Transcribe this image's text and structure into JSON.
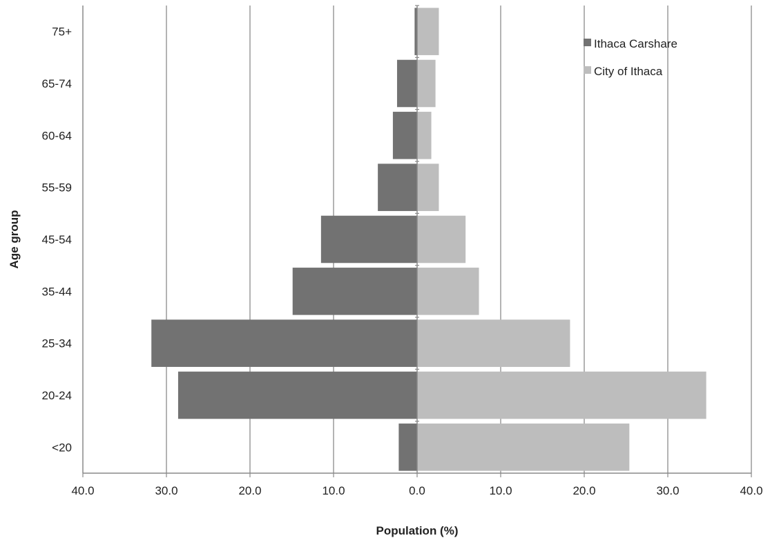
{
  "chart_data": {
    "type": "bar",
    "orientation": "horizontal",
    "layout": "population-pyramid",
    "title": "",
    "xlabel": "Population (%)",
    "ylabel": "Age group",
    "xlim": [
      -40,
      40
    ],
    "x_ticks": [
      "40.0",
      "30.0",
      "20.0",
      "10.0",
      "0.0",
      "10.0",
      "20.0",
      "30.0",
      "40.0"
    ],
    "grid": "vertical",
    "legend_position": "top-right",
    "categories": [
      "<20",
      "20-24",
      "25-34",
      "35-44",
      "45-54",
      "55-59",
      "60-64",
      "65-74",
      "75+"
    ],
    "series": [
      {
        "name": "Ithaca Carshare",
        "side": "left",
        "color": "#727272",
        "values": [
          2.2,
          28.6,
          31.8,
          14.9,
          11.5,
          4.7,
          2.9,
          2.4,
          0.3
        ]
      },
      {
        "name": "City of Ithaca",
        "side": "right",
        "color": "#bdbdbd",
        "values": [
          25.4,
          34.6,
          18.3,
          7.4,
          5.8,
          2.6,
          1.7,
          2.2,
          2.6
        ]
      }
    ]
  }
}
